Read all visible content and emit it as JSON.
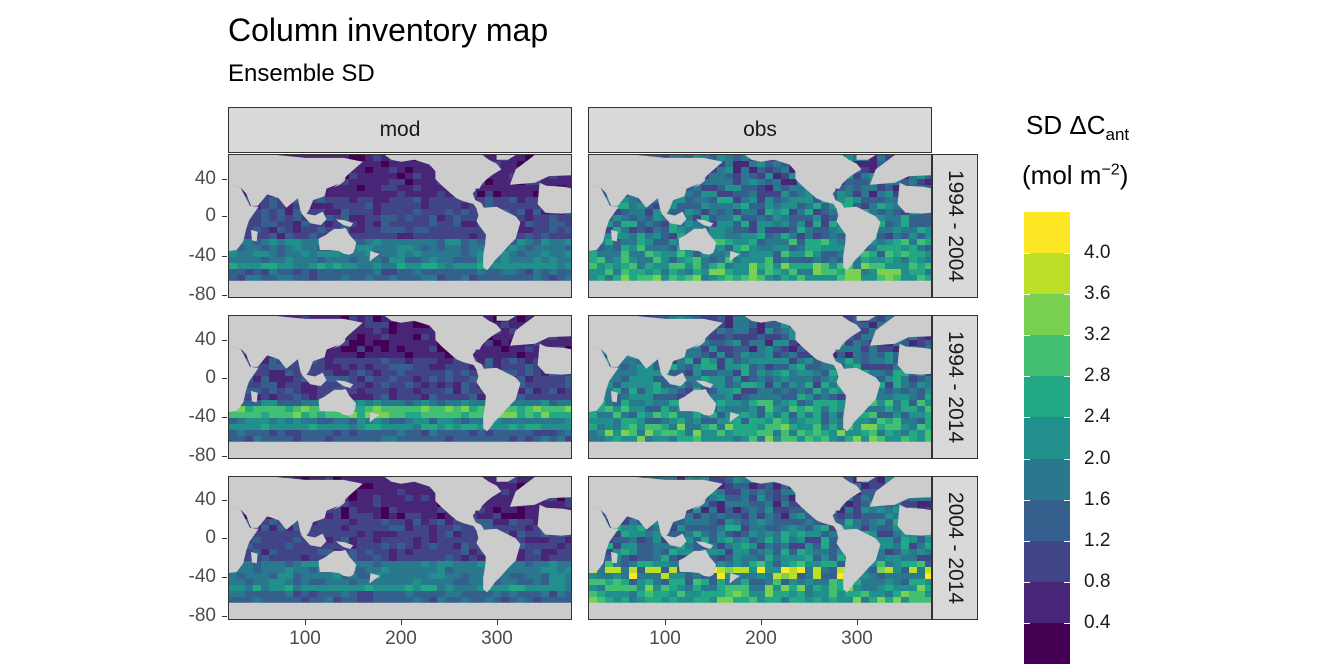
{
  "title": "Column inventory map",
  "subtitle": "Ensemble SD",
  "facets": {
    "columns": [
      "mod",
      "obs"
    ],
    "rows": [
      "1994 - 2004",
      "1994 - 2014",
      "2004 - 2014"
    ]
  },
  "axes": {
    "x_ticks": [
      "100",
      "200",
      "300"
    ],
    "y_ticks": [
      "40",
      "0",
      "-40",
      "-80"
    ]
  },
  "legend": {
    "title_main": "SD ΔC",
    "title_sub": "ant",
    "title_unit": "(mol m",
    "title_exp": "−2",
    "title_close": ")",
    "labels": [
      "4.0",
      "3.6",
      "3.2",
      "2.8",
      "2.4",
      "2.0",
      "1.6",
      "1.2",
      "0.8",
      "0.4"
    ],
    "colors": [
      "#FDE725",
      "#BBDF27",
      "#7AD151",
      "#43BF71",
      "#22A884",
      "#21908C",
      "#2A788E",
      "#355F8D",
      "#414487",
      "#482576",
      "#440154"
    ]
  },
  "chart_data": {
    "type": "heatmap",
    "title": "Column inventory map",
    "subtitle": "Ensemble SD",
    "x": {
      "range": [
        20,
        380
      ],
      "ticks": [
        100,
        200,
        300
      ]
    },
    "y": {
      "range": [
        -85,
        65
      ],
      "ticks": [
        40,
        0,
        -40,
        -80
      ]
    },
    "facet_columns": [
      "mod",
      "obs"
    ],
    "facet_rows": [
      "1994 - 2004",
      "1994 - 2014",
      "2004 - 2014"
    ],
    "colorscale": {
      "name": "viridis",
      "breaks": [
        0.4,
        0.8,
        1.2,
        1.6,
        2.0,
        2.4,
        2.8,
        3.2,
        3.6,
        4.0
      ]
    },
    "land_color": "#cccccc",
    "legend_position": "right"
  }
}
